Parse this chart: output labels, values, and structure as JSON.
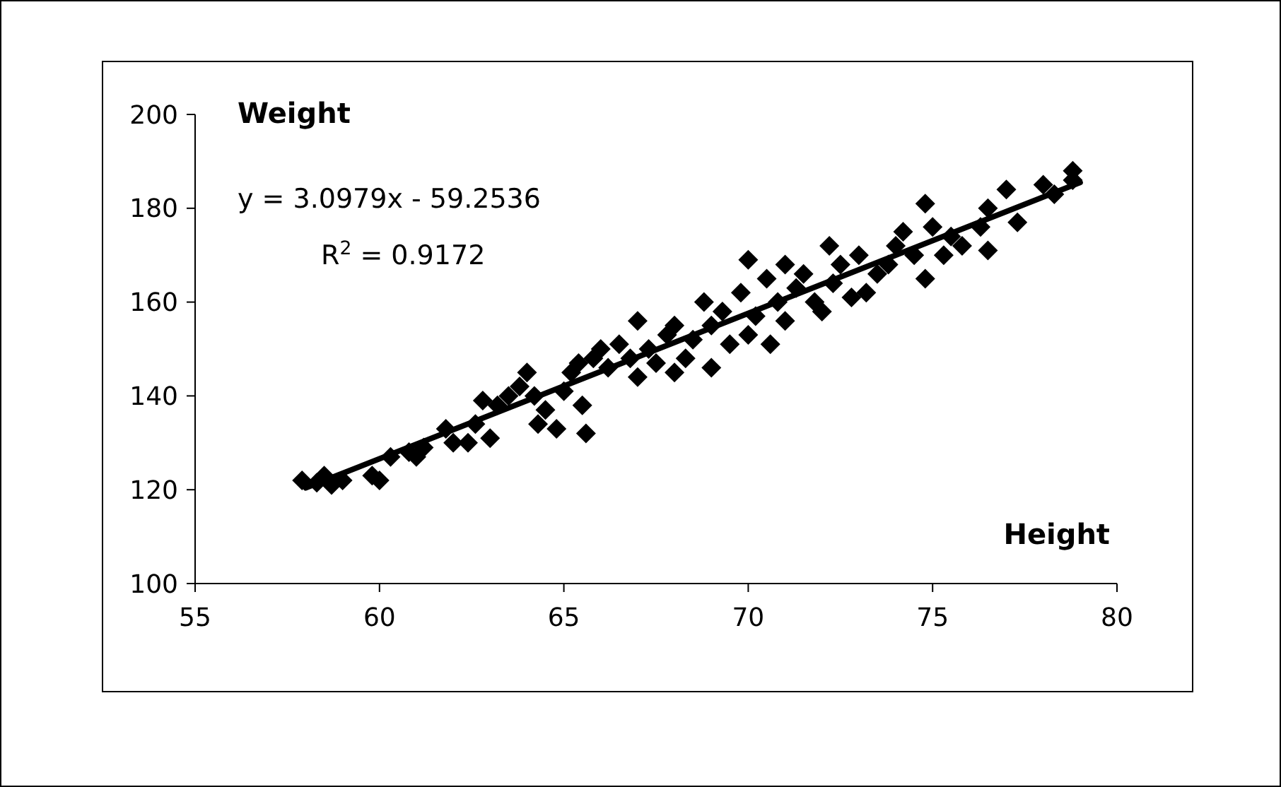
{
  "chart_data": {
    "type": "scatter",
    "xlabel": "Height",
    "ylabel": "Weight",
    "xlim": [
      55,
      80
    ],
    "xticks": [
      55,
      60,
      65,
      70,
      75,
      80
    ],
    "ylim": [
      100,
      200
    ],
    "yticks": [
      100,
      120,
      140,
      160,
      180,
      200
    ],
    "grid": false,
    "annotations": [
      "y = 3.0979x - 59.2536",
      "R$^{2}$ = 0.9172"
    ],
    "series": [
      {
        "color": "#000000",
        "marker": "diamond",
        "x": [
          57.9,
          58.3,
          58.5,
          58.7,
          59,
          59.8,
          60,
          60.3,
          60.8,
          61,
          61.2,
          61.8,
          62,
          62.4,
          62.6,
          62.8,
          63,
          63.2,
          63.5,
          63.8,
          64,
          64.2,
          64.3,
          64.5,
          64.8,
          65,
          65.2,
          65.4,
          65.5,
          65.6,
          65.8,
          66,
          66.2,
          66.5,
          66.8,
          67,
          67,
          67.3,
          67.5,
          67.8,
          68,
          68,
          68.3,
          68.5,
          68.8,
          69,
          69,
          69.3,
          69.5,
          69.8,
          70,
          70,
          70.2,
          70.5,
          70.6,
          70.8,
          71,
          71,
          71.3,
          71.5,
          71.8,
          72,
          72.2,
          72.3,
          72.5,
          72.8,
          73,
          73.2,
          73.5,
          73.8,
          74,
          74.2,
          74.5,
          74.8,
          74.8,
          75,
          75.3,
          75.5,
          75.8,
          76.3,
          76.5,
          76.5,
          77,
          77.3,
          78,
          78.3,
          78.8,
          78.8
        ],
        "values": [
          122,
          121.5,
          123,
          121,
          122,
          123,
          122,
          127,
          128,
          127,
          129,
          133,
          130,
          130,
          134,
          139,
          131,
          138,
          140,
          142,
          145,
          140,
          134,
          137,
          133,
          141,
          145,
          147,
          138,
          132,
          148,
          150,
          146,
          151,
          148,
          156,
          144,
          150,
          147,
          153,
          155,
          145,
          148,
          152,
          160,
          155,
          146,
          158,
          151,
          162,
          169,
          153,
          157,
          165,
          151,
          160,
          168,
          156,
          163,
          166,
          160,
          158,
          172,
          164,
          168,
          161,
          170,
          162,
          166,
          168,
          172,
          175,
          170,
          181,
          165,
          176,
          170,
          174,
          172,
          176,
          180,
          171,
          184,
          177,
          185,
          183,
          188,
          186
        ]
      },
      {
        "type": "line",
        "color": "#000000",
        "marker": "none",
        "x": [
          58,
          79
        ],
        "values": [
          120.4,
          185.5
        ]
      }
    ]
  }
}
